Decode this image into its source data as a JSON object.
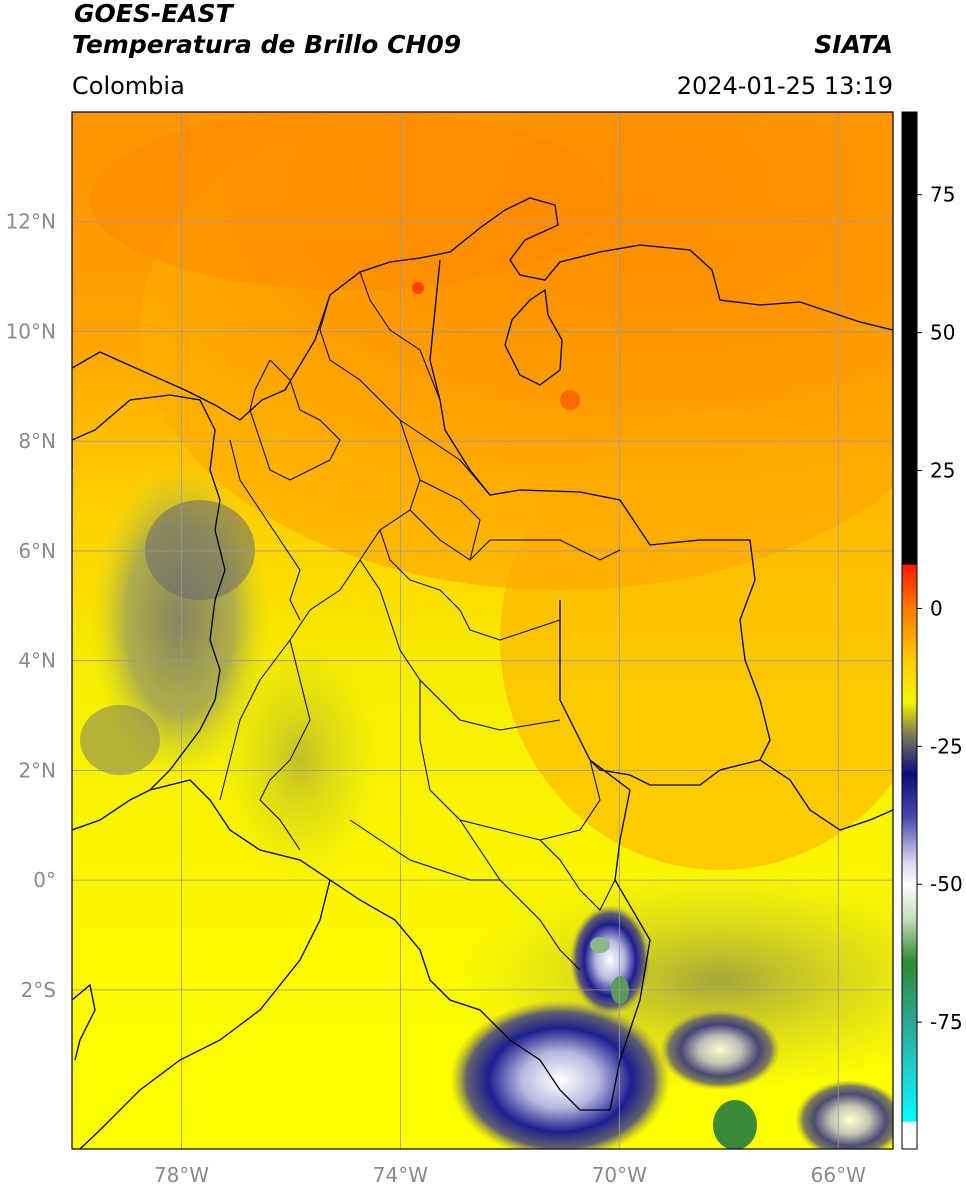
{
  "header": {
    "title_line1": "GOES-EAST",
    "title_line2": "Temperatura de Brillo CH09",
    "brand": "SIATA",
    "region": "Colombia",
    "datetime": "2024-01-25 13:19"
  },
  "map": {
    "lon_range": [
      -80,
      -65
    ],
    "lat_range": [
      -4.9,
      14
    ],
    "lat_ticks": [
      {
        "value": 12,
        "label": "12°N"
      },
      {
        "value": 10,
        "label": "10°N"
      },
      {
        "value": 8,
        "label": "8°N"
      },
      {
        "value": 6,
        "label": "6°N"
      },
      {
        "value": 4,
        "label": "4°N"
      },
      {
        "value": 2,
        "label": "2°N"
      },
      {
        "value": 0,
        "label": "0°"
      },
      {
        "value": -2,
        "label": "2°S"
      }
    ],
    "lon_ticks": [
      {
        "value": -78,
        "label": "78°W"
      },
      {
        "value": -74,
        "label": "74°W"
      },
      {
        "value": -70,
        "label": "70°W"
      },
      {
        "value": -66,
        "label": "66°W"
      }
    ],
    "grid": true
  },
  "colorbar": {
    "ticks": [
      {
        "value": 75,
        "label": "75"
      },
      {
        "value": 50,
        "label": "50"
      },
      {
        "value": 25,
        "label": "25"
      },
      {
        "value": 0,
        "label": "0"
      },
      {
        "value": -25,
        "label": "-25"
      },
      {
        "value": -50,
        "label": "-50"
      },
      {
        "value": -75,
        "label": "-75"
      }
    ],
    "range": [
      -98,
      90
    ],
    "stops": [
      {
        "value": 90,
        "color": "#000000"
      },
      {
        "value": 8,
        "color": "#000000"
      },
      {
        "value": 7.9,
        "color": "#ff1a00"
      },
      {
        "value": 0,
        "color": "#ff7a00"
      },
      {
        "value": -10,
        "color": "#ffd000"
      },
      {
        "value": -17,
        "color": "#f4f400"
      },
      {
        "value": -22,
        "color": "#8c8c46"
      },
      {
        "value": -25,
        "color": "#5a5a6a"
      },
      {
        "value": -30,
        "color": "#0a0a7a"
      },
      {
        "value": -38,
        "color": "#4a4ab0"
      },
      {
        "value": -46,
        "color": "#d8d8ee"
      },
      {
        "value": -50,
        "color": "#ffffff"
      },
      {
        "value": -56,
        "color": "#c8e0c0"
      },
      {
        "value": -64,
        "color": "#2e8a2e"
      },
      {
        "value": -74,
        "color": "#2aa68a"
      },
      {
        "value": -84,
        "color": "#20d0d0"
      },
      {
        "value": -93,
        "color": "#00ffff"
      },
      {
        "value": -93.1,
        "color": "#ffffff"
      },
      {
        "value": -98,
        "color": "#ffffff"
      }
    ]
  }
}
